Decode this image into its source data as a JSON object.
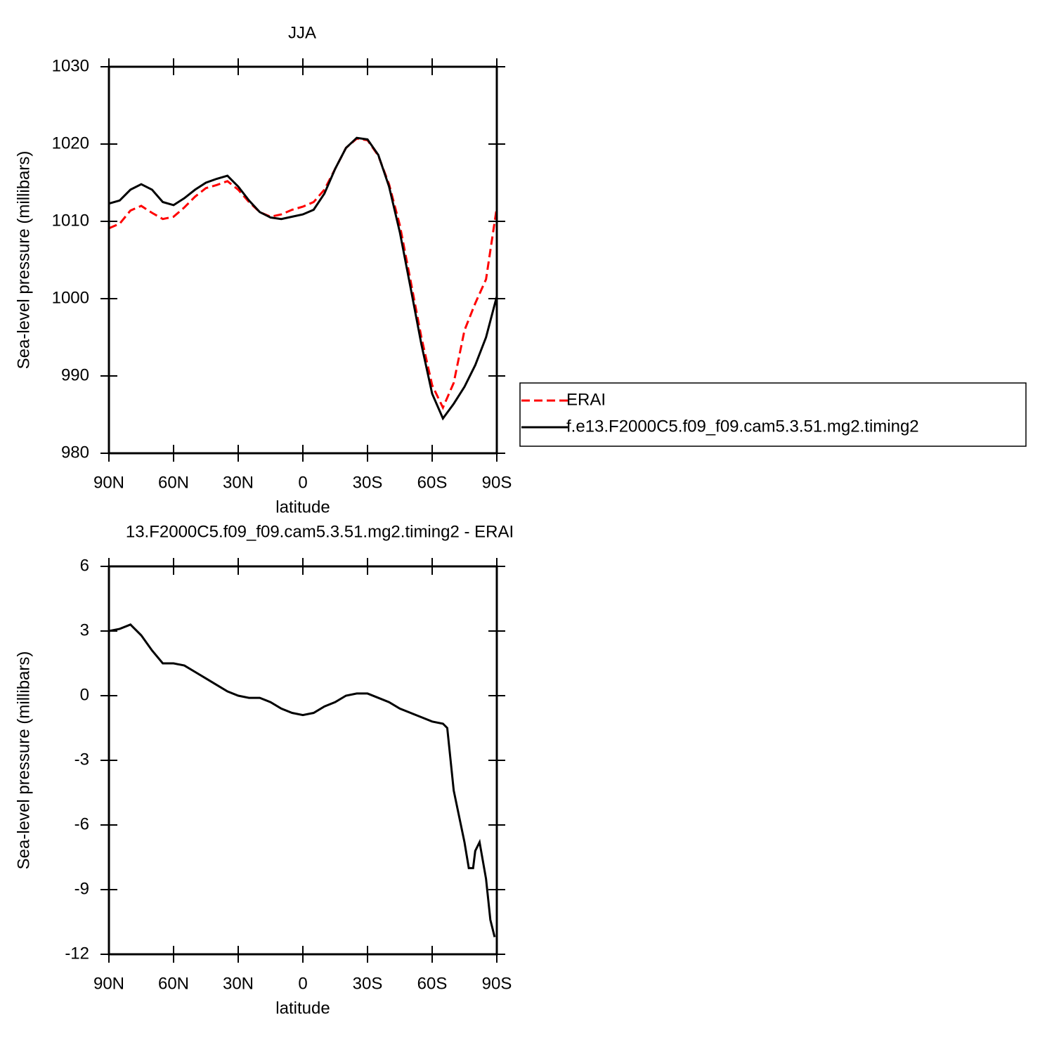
{
  "chart_data": [
    {
      "type": "line",
      "title": "JJA",
      "xlabel": "latitude",
      "ylabel": "Sea-level pressure (millibars)",
      "x": [
        90,
        85,
        80,
        75,
        70,
        65,
        60,
        55,
        50,
        45,
        40,
        35,
        30,
        25,
        20,
        15,
        10,
        5,
        0,
        -5,
        -10,
        -15,
        -20,
        -25,
        -30,
        -35,
        -40,
        -45,
        -50,
        -55,
        -60,
        -65,
        -70,
        -75,
        -80,
        -85,
        -90
      ],
      "series": [
        {
          "name": "ERAI",
          "color": "#ff0000",
          "dash": true,
          "values": [
            1009.1,
            1009.7,
            1011.4,
            1012.0,
            1011.1,
            1010.3,
            1010.6,
            1011.8,
            1013.2,
            1014.3,
            1014.7,
            1015.2,
            1014.1,
            1012.5,
            1011.2,
            1010.6,
            1010.9,
            1011.5,
            1011.9,
            1012.5,
            1014.1,
            1016.8,
            1019.5,
            1020.7,
            1020.5,
            1018.5,
            1014.8,
            1009.5,
            1002.3,
            995.0,
            988.8,
            985.9,
            989.1,
            995.9,
            999.4,
            1002.5,
            1011.8
          ]
        },
        {
          "name": "f.e13.F2000C5.f09_f09.cam5.3.51.mg2.timing2",
          "color": "#000000",
          "dash": false,
          "values": [
            1012.3,
            1012.7,
            1014.1,
            1014.8,
            1014.1,
            1012.5,
            1012.1,
            1013.0,
            1014.1,
            1015.0,
            1015.5,
            1015.9,
            1014.5,
            1012.7,
            1011.2,
            1010.5,
            1010.3,
            1010.6,
            1010.9,
            1011.5,
            1013.6,
            1016.8,
            1019.5,
            1020.8,
            1020.6,
            1018.6,
            1014.5,
            1008.6,
            1001.4,
            994.1,
            987.7,
            984.5,
            986.4,
            988.6,
            991.4,
            995.0,
            1000.3
          ]
        }
      ],
      "xlim": [
        90,
        -90
      ],
      "xticks": [
        {
          "value": 90,
          "label": "90N"
        },
        {
          "value": 60,
          "label": "60N"
        },
        {
          "value": 30,
          "label": "30N"
        },
        0,
        {
          "value": -30,
          "label": "30S"
        },
        {
          "value": -60,
          "label": "60S"
        },
        {
          "value": -90,
          "label": "90S"
        }
      ],
      "ylim": [
        980,
        1030
      ],
      "yticks": [
        980,
        990,
        1000,
        1010,
        1020,
        1030
      ],
      "legend": "outside-right"
    },
    {
      "type": "line",
      "title": "13.F2000C5.f09_f09.cam5.3.51.mg2.timing2 - ERAI",
      "xlabel": "latitude",
      "ylabel": "Sea-level pressure (millibars)",
      "x": [
        90,
        85,
        80,
        75,
        70,
        65,
        60,
        55,
        50,
        45,
        40,
        35,
        30,
        25,
        20,
        15,
        10,
        5,
        0,
        -5,
        -10,
        -15,
        -20,
        -25,
        -30,
        -35,
        -40,
        -45,
        -50,
        -55,
        -60,
        -65,
        -67,
        -70,
        -75,
        -77,
        -79,
        -80,
        -82,
        -85,
        -87,
        -89
      ],
      "series": [
        {
          "color": "#000000",
          "dash": false,
          "values": [
            3.0,
            3.1,
            3.3,
            2.8,
            2.1,
            1.5,
            1.5,
            1.4,
            1.1,
            0.8,
            0.5,
            0.2,
            0.0,
            -0.1,
            -0.1,
            -0.3,
            -0.6,
            -0.8,
            -0.9,
            -0.8,
            -0.5,
            -0.3,
            0.0,
            0.1,
            0.1,
            -0.1,
            -0.3,
            -0.6,
            -0.8,
            -1.0,
            -1.2,
            -1.3,
            -1.5,
            -4.4,
            -6.8,
            -8.0,
            -8.0,
            -7.2,
            -6.8,
            -8.5,
            -10.4,
            -11.2
          ]
        }
      ],
      "xlim": [
        90,
        -90
      ],
      "xticks": [
        {
          "value": 90,
          "label": "90N"
        },
        {
          "value": 60,
          "label": "60N"
        },
        {
          "value": 30,
          "label": "30N"
        },
        0,
        {
          "value": -30,
          "label": "30S"
        },
        {
          "value": -60,
          "label": "60S"
        },
        {
          "value": -90,
          "label": "90S"
        }
      ],
      "ylim": [
        -12,
        6
      ],
      "yticks": [
        -12,
        -9,
        -6,
        -3,
        0,
        3,
        6
      ]
    }
  ]
}
